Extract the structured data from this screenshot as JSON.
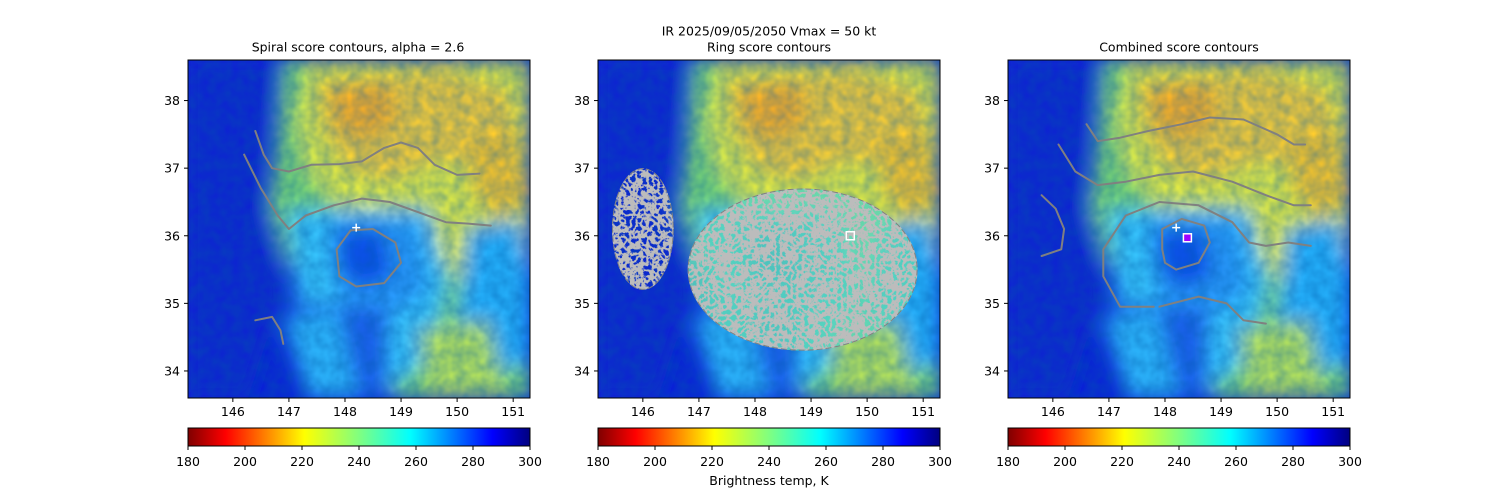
{
  "figure": {
    "suptitle_line1": "IR  2025/09/05/2050    Vmax = 50 kt",
    "colorbar_label": "Brightness temp, K"
  },
  "colors": {
    "contour": "#808080",
    "marker_plus": "#ffffff",
    "marker_square_edge": "#ffffff",
    "combined_square_fill": "#a000ff"
  },
  "chart_data": [
    {
      "type": "heatmap",
      "title": "Spiral score contours, alpha =  2.6",
      "xlim": [
        145.2,
        151.3
      ],
      "ylim": [
        33.6,
        38.6
      ],
      "xticks": [
        146,
        147,
        148,
        149,
        150,
        151
      ],
      "yticks": [
        34,
        35,
        36,
        37,
        38
      ],
      "colorbar": {
        "cmap": "jet_r",
        "range": [
          180,
          300
        ],
        "ticks": [
          180,
          200,
          220,
          240,
          260,
          280,
          300
        ]
      },
      "markers": [
        {
          "kind": "plus",
          "lon": 148.2,
          "lat": 36.12
        }
      ],
      "contours": [
        [
          [
            146.4,
            37.55
          ],
          [
            146.55,
            37.2
          ],
          [
            146.7,
            37.0
          ],
          [
            147.0,
            36.95
          ],
          [
            147.4,
            37.05
          ],
          [
            147.9,
            37.06
          ],
          [
            148.3,
            37.1
          ],
          [
            148.7,
            37.3
          ],
          [
            149.0,
            37.38
          ],
          [
            149.3,
            37.3
          ],
          [
            149.6,
            37.05
          ],
          [
            150.0,
            36.9
          ],
          [
            150.4,
            36.92
          ]
        ],
        [
          [
            146.2,
            37.2
          ],
          [
            146.5,
            36.7
          ],
          [
            146.8,
            36.3
          ],
          [
            147.0,
            36.1
          ],
          [
            147.3,
            36.3
          ],
          [
            147.8,
            36.45
          ],
          [
            148.3,
            36.55
          ],
          [
            148.8,
            36.5
          ],
          [
            149.3,
            36.35
          ],
          [
            149.8,
            36.2
          ],
          [
            150.2,
            36.18
          ],
          [
            150.6,
            36.15
          ]
        ],
        [
          [
            147.9,
            35.4
          ],
          [
            147.85,
            35.8
          ],
          [
            148.1,
            36.08
          ],
          [
            148.5,
            36.1
          ],
          [
            148.9,
            35.9
          ],
          [
            149.0,
            35.6
          ],
          [
            148.7,
            35.3
          ],
          [
            148.2,
            35.25
          ],
          [
            147.9,
            35.4
          ]
        ],
        [
          [
            146.4,
            34.75
          ],
          [
            146.7,
            34.8
          ],
          [
            146.85,
            34.6
          ],
          [
            146.9,
            34.4
          ]
        ]
      ]
    },
    {
      "type": "heatmap",
      "title": "Ring score contours",
      "xlim": [
        145.2,
        151.3
      ],
      "ylim": [
        33.6,
        38.6
      ],
      "xticks": [
        146,
        147,
        148,
        149,
        150,
        151
      ],
      "yticks": [
        34,
        35,
        36,
        37,
        38
      ],
      "colorbar": {
        "cmap": "jet_r",
        "range": [
          180,
          300
        ],
        "ticks": [
          180,
          200,
          220,
          240,
          260,
          280,
          300
        ]
      },
      "markers": [
        {
          "kind": "square",
          "lon": 149.7,
          "lat": 36.0
        }
      ],
      "ring_regions": [
        {
          "center": [
            148.85,
            35.5
          ],
          "rx": 2.05,
          "ry": 1.2
        },
        {
          "center": [
            146.0,
            36.1
          ],
          "rx": 0.55,
          "ry": 0.9
        }
      ],
      "contours": []
    },
    {
      "type": "heatmap",
      "title": "Combined score contours",
      "xlim": [
        145.2,
        151.3
      ],
      "ylim": [
        33.6,
        38.6
      ],
      "xticks": [
        146,
        147,
        148,
        149,
        150,
        151
      ],
      "yticks": [
        34,
        35,
        36,
        37,
        38
      ],
      "colorbar": {
        "cmap": "jet_r",
        "range": [
          180,
          300
        ],
        "ticks": [
          180,
          200,
          220,
          240,
          260,
          280,
          300
        ]
      },
      "markers": [
        {
          "kind": "plus",
          "lon": 148.2,
          "lat": 36.12
        },
        {
          "kind": "square",
          "lon": 148.4,
          "lat": 35.97
        }
      ],
      "contours": [
        [
          [
            146.6,
            37.65
          ],
          [
            146.8,
            37.4
          ],
          [
            147.2,
            37.45
          ],
          [
            147.7,
            37.55
          ],
          [
            148.3,
            37.65
          ],
          [
            148.8,
            37.75
          ],
          [
            149.4,
            37.72
          ],
          [
            150.0,
            37.5
          ],
          [
            150.3,
            37.35
          ],
          [
            150.5,
            37.35
          ]
        ],
        [
          [
            146.1,
            37.35
          ],
          [
            146.4,
            36.95
          ],
          [
            146.8,
            36.75
          ],
          [
            147.3,
            36.8
          ],
          [
            147.9,
            36.9
          ],
          [
            148.5,
            36.95
          ],
          [
            149.2,
            36.8
          ],
          [
            149.8,
            36.6
          ],
          [
            150.3,
            36.45
          ],
          [
            150.6,
            36.45
          ]
        ],
        [
          [
            148.0,
            35.6
          ],
          [
            148.2,
            35.5
          ],
          [
            148.6,
            35.6
          ],
          [
            148.8,
            35.9
          ],
          [
            148.7,
            36.15
          ],
          [
            148.3,
            36.25
          ],
          [
            147.95,
            36.1
          ],
          [
            147.95,
            35.8
          ],
          [
            148.0,
            35.6
          ]
        ],
        [
          [
            147.8,
            34.95
          ],
          [
            147.2,
            34.95
          ],
          [
            146.9,
            35.4
          ],
          [
            146.9,
            35.8
          ],
          [
            147.3,
            36.3
          ],
          [
            147.9,
            36.5
          ],
          [
            148.6,
            36.45
          ],
          [
            149.2,
            36.2
          ],
          [
            149.5,
            35.9
          ],
          [
            149.8,
            35.85
          ],
          [
            150.2,
            35.9
          ],
          [
            150.6,
            35.85
          ]
        ],
        [
          [
            147.9,
            34.95
          ],
          [
            148.6,
            35.1
          ],
          [
            149.1,
            35.0
          ],
          [
            149.4,
            34.75
          ],
          [
            149.8,
            34.7
          ]
        ],
        [
          [
            145.8,
            36.6
          ],
          [
            146.05,
            36.4
          ],
          [
            146.2,
            36.1
          ],
          [
            146.15,
            35.8
          ],
          [
            145.8,
            35.7
          ]
        ]
      ]
    }
  ]
}
